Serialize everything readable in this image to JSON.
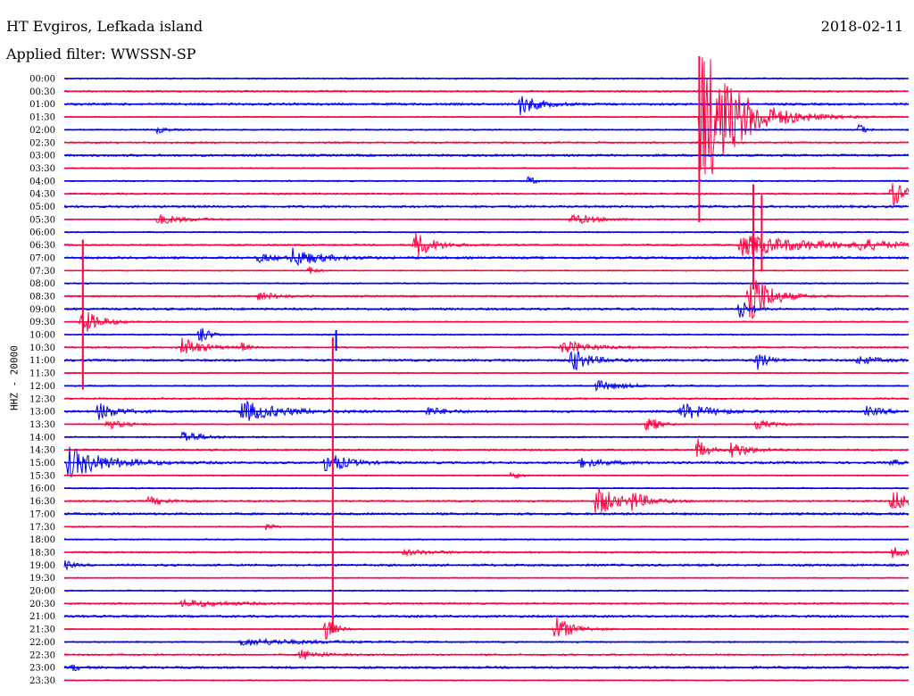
{
  "header": {
    "station": "HT Evgiros, Lefkada island",
    "filter": "Applied filter: WWSSN-SP",
    "date": "2018-02-11"
  },
  "chart_data": {
    "type": "line",
    "ylabel": "HHZ - 20000",
    "colors": [
      "#0000ee",
      "#ff0040"
    ],
    "rows": [
      "00:00",
      "00:30",
      "01:00",
      "01:30",
      "02:00",
      "02:30",
      "03:00",
      "03:30",
      "04:00",
      "04:30",
      "05:00",
      "05:30",
      "06:00",
      "06:30",
      "07:00",
      "07:30",
      "08:00",
      "08:30",
      "09:00",
      "09:30",
      "10:00",
      "10:30",
      "11:00",
      "11:30",
      "12:00",
      "12:30",
      "13:00",
      "13:30",
      "14:00",
      "14:30",
      "15:00",
      "15:30",
      "16:00",
      "16:30",
      "17:00",
      "17:30",
      "18:00",
      "18:30",
      "19:00",
      "19:30",
      "20:00",
      "20:30",
      "21:00",
      "21:30",
      "22:00",
      "22:30",
      "23:00",
      "23:30"
    ],
    "events": [
      {
        "row": 2,
        "x": 0.54,
        "amp": 12,
        "dur": 0.02
      },
      {
        "row": 3,
        "x": 0.754,
        "amp": 90,
        "dur": 0.04
      },
      {
        "row": 4,
        "x": 0.94,
        "amp": 10,
        "dur": 0.006
      },
      {
        "row": 4,
        "x": 0.11,
        "amp": 4,
        "dur": 0.01
      },
      {
        "row": 8,
        "x": 0.55,
        "amp": 6,
        "dur": 0.006
      },
      {
        "row": 9,
        "x": 0.98,
        "amp": 14,
        "dur": 0.02
      },
      {
        "row": 11,
        "x": 0.11,
        "amp": 6,
        "dur": 0.03
      },
      {
        "row": 11,
        "x": 0.6,
        "amp": 6,
        "dur": 0.03
      },
      {
        "row": 13,
        "x": 0.415,
        "amp": 16,
        "dur": 0.02
      },
      {
        "row": 13,
        "x": 0.8,
        "amp": 12,
        "dur": 0.08
      },
      {
        "row": 13,
        "x": 0.94,
        "amp": 6,
        "dur": 0.03
      },
      {
        "row": 14,
        "x": 0.27,
        "amp": 10,
        "dur": 0.03
      },
      {
        "row": 14,
        "x": 0.23,
        "amp": 5,
        "dur": 0.02
      },
      {
        "row": 15,
        "x": 0.29,
        "amp": 6,
        "dur": 0.006
      },
      {
        "row": 17,
        "x": 0.23,
        "amp": 5,
        "dur": 0.02
      },
      {
        "row": 17,
        "x": 0.81,
        "amp": 40,
        "dur": 0.02
      },
      {
        "row": 18,
        "x": 0.8,
        "amp": 12,
        "dur": 0.01
      },
      {
        "row": 19,
        "x": 0.02,
        "amp": 16,
        "dur": 0.02
      },
      {
        "row": 20,
        "x": 0.16,
        "amp": 12,
        "dur": 0.01
      },
      {
        "row": 21,
        "x": 0.14,
        "amp": 12,
        "dur": 0.02
      },
      {
        "row": 21,
        "x": 0.21,
        "amp": 6,
        "dur": 0.006
      },
      {
        "row": 21,
        "x": 0.59,
        "amp": 8,
        "dur": 0.03
      },
      {
        "row": 22,
        "x": 0.6,
        "amp": 14,
        "dur": 0.02
      },
      {
        "row": 22,
        "x": 0.82,
        "amp": 14,
        "dur": 0.01
      },
      {
        "row": 22,
        "x": 0.94,
        "amp": 5,
        "dur": 0.02
      },
      {
        "row": 24,
        "x": 0.63,
        "amp": 6,
        "dur": 0.03
      },
      {
        "row": 26,
        "x": 0.04,
        "amp": 10,
        "dur": 0.02
      },
      {
        "row": 26,
        "x": 0.21,
        "amp": 12,
        "dur": 0.04
      },
      {
        "row": 26,
        "x": 0.43,
        "amp": 5,
        "dur": 0.02
      },
      {
        "row": 26,
        "x": 0.73,
        "amp": 10,
        "dur": 0.03
      },
      {
        "row": 26,
        "x": 0.95,
        "amp": 5,
        "dur": 0.02
      },
      {
        "row": 27,
        "x": 0.05,
        "amp": 6,
        "dur": 0.02
      },
      {
        "row": 27,
        "x": 0.69,
        "amp": 14,
        "dur": 0.01
      },
      {
        "row": 27,
        "x": 0.82,
        "amp": 5,
        "dur": 0.02
      },
      {
        "row": 28,
        "x": 0.14,
        "amp": 8,
        "dur": 0.02
      },
      {
        "row": 29,
        "x": 0.75,
        "amp": 14,
        "dur": 0.01
      },
      {
        "row": 29,
        "x": 0.79,
        "amp": 10,
        "dur": 0.02
      },
      {
        "row": 30,
        "x": 0.005,
        "amp": 18,
        "dur": 0.04
      },
      {
        "row": 30,
        "x": 0.31,
        "amp": 14,
        "dur": 0.02
      },
      {
        "row": 30,
        "x": 0.61,
        "amp": 5,
        "dur": 0.03
      },
      {
        "row": 30,
        "x": 0.98,
        "amp": 5,
        "dur": 0.006
      },
      {
        "row": 31,
        "x": 0.53,
        "amp": 8,
        "dur": 0.006
      },
      {
        "row": 33,
        "x": 0.1,
        "amp": 5,
        "dur": 0.02
      },
      {
        "row": 33,
        "x": 0.63,
        "amp": 20,
        "dur": 0.02
      },
      {
        "row": 33,
        "x": 0.67,
        "amp": 10,
        "dur": 0.02
      },
      {
        "row": 33,
        "x": 0.98,
        "amp": 14,
        "dur": 0.02
      },
      {
        "row": 35,
        "x": 0.24,
        "amp": 6,
        "dur": 0.006
      },
      {
        "row": 37,
        "x": 0.4,
        "amp": 3,
        "dur": 0.04
      },
      {
        "row": 37,
        "x": 0.98,
        "amp": 6,
        "dur": 0.02
      },
      {
        "row": 38,
        "x": 0.002,
        "amp": 6,
        "dur": 0.006
      },
      {
        "row": 41,
        "x": 0.14,
        "amp": 4,
        "dur": 0.05
      },
      {
        "row": 43,
        "x": 0.31,
        "amp": 14,
        "dur": 0.01
      },
      {
        "row": 43,
        "x": 0.58,
        "amp": 16,
        "dur": 0.02
      },
      {
        "row": 44,
        "x": 0.21,
        "amp": 4,
        "dur": 0.08
      },
      {
        "row": 45,
        "x": 0.28,
        "amp": 6,
        "dur": 0.02
      },
      {
        "row": 46,
        "x": 0.01,
        "amp": 5,
        "dur": 0.006
      }
    ],
    "spikes": [
      {
        "row": 3,
        "x": 0.752,
        "up": 68,
        "down": 118
      },
      {
        "row": 13,
        "x": 0.022,
        "up": 6,
        "down": 162
      },
      {
        "row": 13,
        "x": 0.816,
        "up": 68,
        "down": 50
      },
      {
        "row": 13,
        "x": 0.826,
        "up": 56,
        "down": 30
      },
      {
        "row": 20,
        "x": 0.322,
        "up": 5,
        "down": 18
      },
      {
        "row": 29,
        "x": 0.318,
        "up": 126,
        "down": 205
      }
    ],
    "noise": [
      0.8,
      1.0,
      1.3,
      0.7
    ]
  }
}
